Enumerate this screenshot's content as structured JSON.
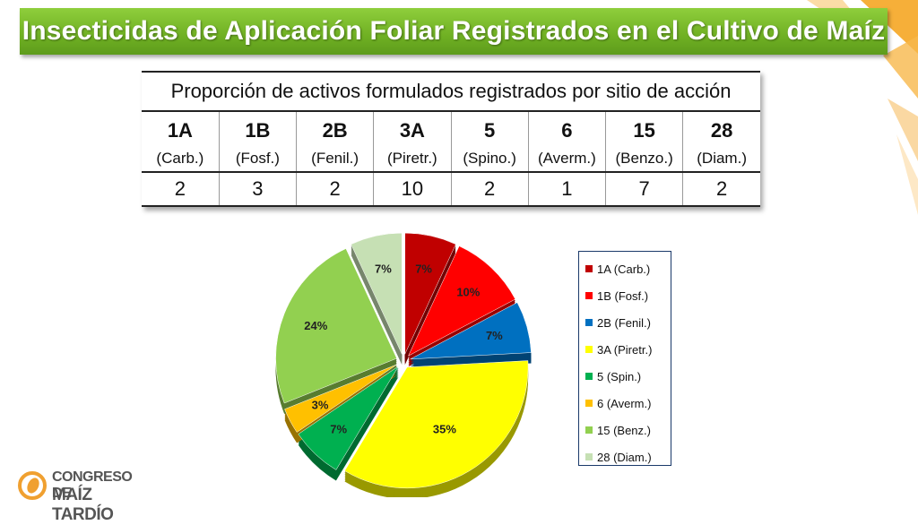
{
  "title": "Insecticidas de Aplicación Foliar Registrados en el Cultivo de Maíz",
  "table": {
    "caption": "Proporción de activos formulados registrados por sitio de acción",
    "columns": [
      {
        "code": "1A",
        "name": "(Carb.)",
        "count": "2"
      },
      {
        "code": "1B",
        "name": "(Fosf.)",
        "count": "3"
      },
      {
        "code": "2B",
        "name": "(Fenil.)",
        "count": "2"
      },
      {
        "code": "3A",
        "name": "(Piretr.)",
        "count": "10"
      },
      {
        "code": "5",
        "name": "(Spino.)",
        "count": "2"
      },
      {
        "code": "6",
        "name": "(Averm.)",
        "count": "1"
      },
      {
        "code": "15",
        "name": "(Benzo.)",
        "count": "7"
      },
      {
        "code": "28",
        "name": "(Diam.)",
        "count": "2"
      }
    ]
  },
  "chart_data": {
    "type": "pie",
    "categories": [
      "1A (Carb.)",
      "1B (Fosf.)",
      "2B (Fenil.)",
      "3A (Piretr.)",
      "5 (Spin.)",
      "6 (Averm.)",
      "15 (Benz.)",
      "28 (Diam.)"
    ],
    "values": [
      2,
      3,
      2,
      10,
      2,
      1,
      7,
      2
    ],
    "labels": [
      "7%",
      "10%",
      "7%",
      "35%",
      "7%",
      "3%",
      "24%",
      "7%"
    ],
    "colors": [
      "#c00000",
      "#ff0000",
      "#0070c0",
      "#ffff00",
      "#00b050",
      "#ffc000",
      "#92d050",
      "#c6e0b4"
    ],
    "legend_position": "right"
  },
  "logo": {
    "line1": "CONGRESO DE",
    "line2": "MAÍZ TARDÍO"
  }
}
